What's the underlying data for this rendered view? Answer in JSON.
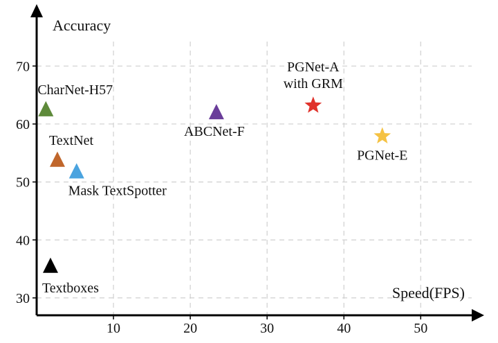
{
  "chart_data": {
    "type": "scatter",
    "title": "",
    "xlabel": "Speed(FPS)",
    "ylabel": "Accuracy",
    "xlim": [
      0,
      57
    ],
    "ylim": [
      27,
      79
    ],
    "x_ticks": [
      10,
      20,
      30,
      40,
      50
    ],
    "y_ticks": [
      30,
      40,
      50,
      60,
      70
    ],
    "grid": true,
    "legend": "none",
    "points": [
      {
        "label": "CharNet-H57",
        "x": 1.2,
        "y": 62.5,
        "marker": "triangle",
        "color": "#5e8a3a",
        "label_position": "above-right"
      },
      {
        "label": "TextNet",
        "x": 2.7,
        "y": 53.8,
        "marker": "triangle",
        "color": "#c0662b",
        "label_position": "above-right"
      },
      {
        "label": "Mask TextSpotter",
        "x": 5.2,
        "y": 51.8,
        "marker": "triangle",
        "color": "#4aa3df",
        "label_position": "below-right"
      },
      {
        "label": "ABCNet-F",
        "x": 23.4,
        "y": 62.0,
        "marker": "triangle",
        "color": "#6a3d9a",
        "label_position": "below"
      },
      {
        "label": "PGNet-A with GRM",
        "label_lines": [
          "PGNet-A",
          "with GRM"
        ],
        "x": 36.0,
        "y": 63.2,
        "marker": "star",
        "color": "#e0322b",
        "label_position": "above"
      },
      {
        "label": "PGNet-E",
        "x": 45.0,
        "y": 57.9,
        "marker": "star",
        "color": "#f5c243",
        "label_position": "below"
      },
      {
        "label": "Textboxes",
        "x": 1.8,
        "y": 35.5,
        "marker": "triangle",
        "color": "#000000",
        "label_position": "below"
      }
    ]
  }
}
